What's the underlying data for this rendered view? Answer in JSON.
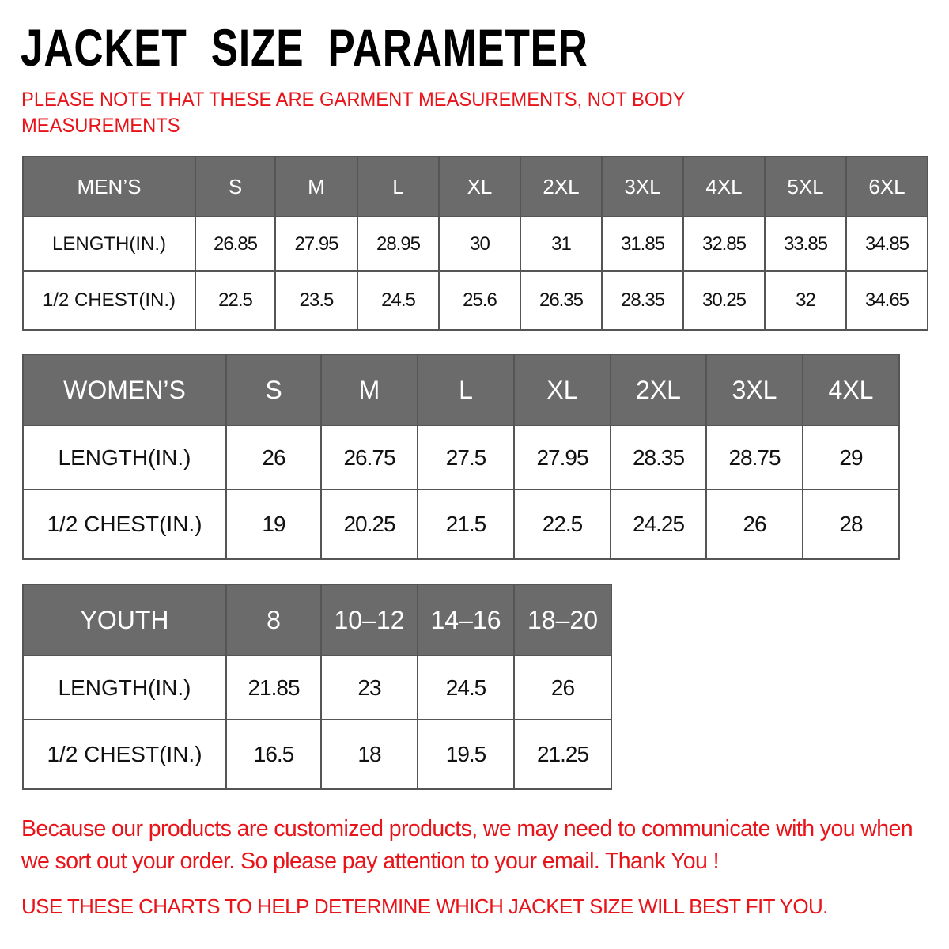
{
  "title": "JACKET  SIZE  PARAMETER",
  "note": "PLEASE NOTE THAT THESE ARE GARMENT MEASUREMENTS, NOT BODY MEASUREMENTS",
  "colors": {
    "header_bg": "#6b6b6b",
    "accent_red": "#e8141a",
    "border": "#555555"
  },
  "tables": {
    "men": {
      "header": [
        "MEN’S",
        "S",
        "M",
        "L",
        "XL",
        "2XL",
        "3XL",
        "4XL",
        "5XL",
        "6XL"
      ],
      "rows": [
        [
          "LENGTH(IN.)",
          "26.85",
          "27.95",
          "28.95",
          "30",
          "31",
          "31.85",
          "32.85",
          "33.85",
          "34.85"
        ],
        [
          "1/2 CHEST(IN.)",
          "22.5",
          "23.5",
          "24.5",
          "25.6",
          "26.35",
          "28.35",
          "30.25",
          "32",
          "34.65"
        ]
      ]
    },
    "women": {
      "header": [
        "WOMEN’S",
        "S",
        "M",
        "L",
        "XL",
        "2XL",
        "3XL",
        "4XL"
      ],
      "rows": [
        [
          "LENGTH(IN.)",
          "26",
          "26.75",
          "27.5",
          "27.95",
          "28.35",
          "28.75",
          "29"
        ],
        [
          "1/2 CHEST(IN.)",
          "19",
          "20.25",
          "21.5",
          "22.5",
          "24.25",
          "26",
          "28"
        ]
      ]
    },
    "youth": {
      "header": [
        "YOUTH",
        "8",
        "10–12",
        "14–16",
        "18–20"
      ],
      "rows": [
        [
          "LENGTH(IN.)",
          "21.85",
          "23",
          "24.5",
          "26"
        ],
        [
          "1/2 CHEST(IN.)",
          "16.5",
          "18",
          "19.5",
          "21.25"
        ]
      ]
    }
  },
  "footer": {
    "message": "Because our products are customized products, we may need to communicate with you when we sort out your order. So please pay attention to your email. Thank You !",
    "advice": "USE THESE CHARTS TO HELP DETERMINE WHICH JACKET SIZE WILL BEST FIT YOU."
  }
}
